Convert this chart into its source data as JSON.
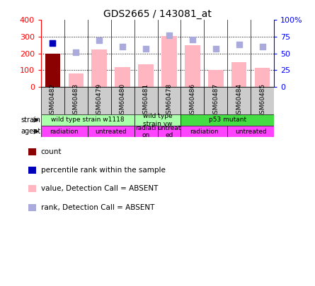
{
  "title": "GDS2665 / 143081_at",
  "samples": [
    "GSM60482",
    "GSM60483",
    "GSM60479",
    "GSM60480",
    "GSM60481",
    "GSM60478",
    "GSM60486",
    "GSM60487",
    "GSM60484",
    "GSM60485"
  ],
  "bar_values": [
    197,
    80,
    225,
    120,
    137,
    305,
    248,
    100,
    148,
    112
  ],
  "bar_special_flags": [
    true,
    false,
    false,
    false,
    false,
    false,
    false,
    false,
    false,
    false
  ],
  "rank_dots": [
    260,
    208,
    278,
    240,
    228,
    310,
    282,
    228,
    252,
    240
  ],
  "blue_dot_index": 0,
  "blue_dot_value": 260,
  "ylim": [
    0,
    400
  ],
  "left_ticks": [
    0,
    100,
    200,
    300,
    400
  ],
  "left_tick_labels": [
    "0",
    "100",
    "200",
    "300",
    "400"
  ],
  "right_ticks": [
    0,
    100,
    200,
    300,
    400
  ],
  "right_tick_labels": [
    "0",
    "25",
    "50",
    "75",
    "100%"
  ],
  "grid_values": [
    100,
    200,
    300
  ],
  "strain_groups": [
    {
      "label": "wild type strain w1118",
      "start": 0,
      "end": 4,
      "color": "#AAFFAA"
    },
    {
      "label": "wild type\nstrain yw",
      "start": 4,
      "end": 6,
      "color": "#AAFFAA"
    },
    {
      "label": "p53 mutant",
      "start": 6,
      "end": 10,
      "color": "#44DD44"
    }
  ],
  "agent_groups": [
    {
      "label": "radiation",
      "start": 0,
      "end": 2,
      "color": "#FF44FF"
    },
    {
      "label": "untreated",
      "start": 2,
      "end": 4,
      "color": "#FF44FF"
    },
    {
      "label": "radiati\non",
      "start": 4,
      "end": 5,
      "color": "#FF44FF"
    },
    {
      "label": "untreat\ned",
      "start": 5,
      "end": 6,
      "color": "#FF44FF"
    },
    {
      "label": "radiation",
      "start": 6,
      "end": 8,
      "color": "#FF44FF"
    },
    {
      "label": "untreated",
      "start": 8,
      "end": 10,
      "color": "#FF44FF"
    }
  ],
  "bar_color_normal": "#FFB6C1",
  "bar_color_special": "#8B0000",
  "dot_color_rank": "#AAAADD",
  "dot_color_blue": "#0000BB",
  "sample_box_color": "#CCCCCC",
  "legend_items": [
    {
      "label": "count",
      "color": "#8B0000"
    },
    {
      "label": "percentile rank within the sample",
      "color": "#0000BB"
    },
    {
      "label": "value, Detection Call = ABSENT",
      "color": "#FFB6C1"
    },
    {
      "label": "rank, Detection Call = ABSENT",
      "color": "#AAAADD"
    }
  ]
}
